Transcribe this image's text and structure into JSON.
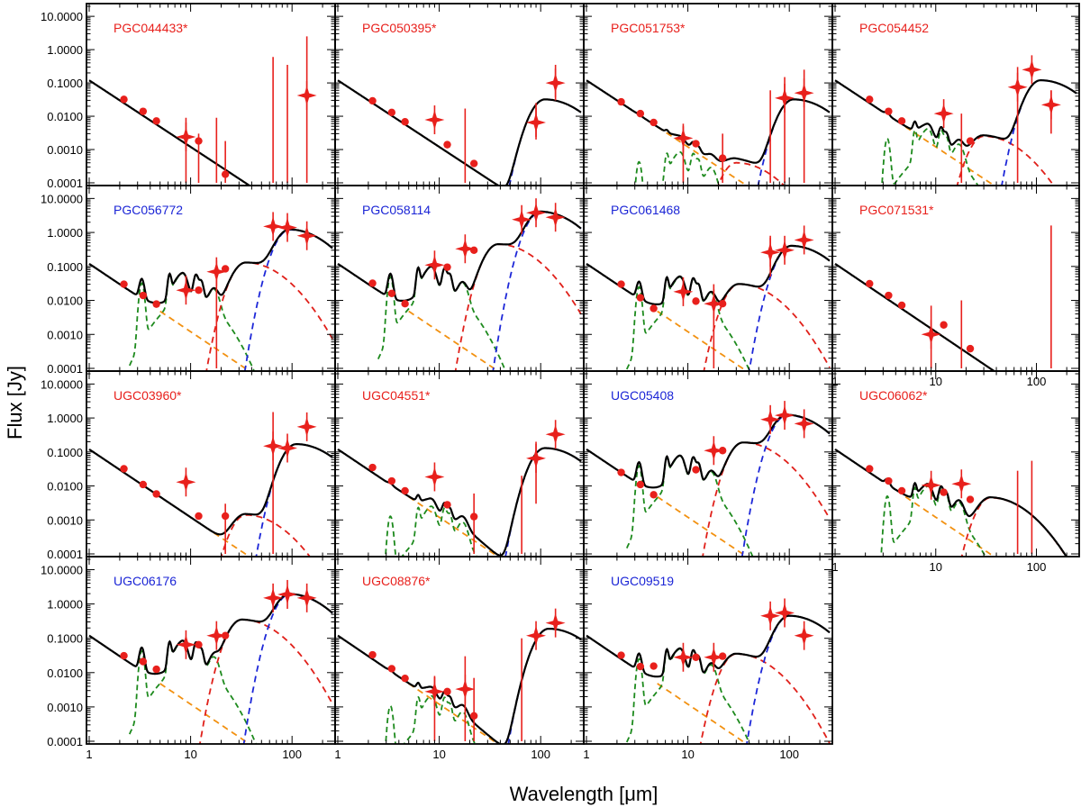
{
  "figure": {
    "xlabel": "Wavelength [μm]",
    "ylabel": "Flux [Jy]"
  },
  "colors": {
    "red_label": "#e8201c",
    "blue_label": "#1b25d6",
    "total": "#000000",
    "stellar": "#f29111",
    "pah": "#1d8a1d",
    "warm_dust": "#e0201a",
    "cold_dust": "#1d27d8",
    "points": "#e8201c"
  },
  "chart_data": {
    "type": "scatter",
    "grid": false,
    "x_axis": {
      "scale": "log",
      "range": [
        1,
        250
      ],
      "tick_labels": [
        "1",
        "10",
        "100"
      ]
    },
    "y_axis": {
      "scale": "log",
      "range": [
        0.0001,
        20
      ],
      "tick_labels": [
        "0.0001",
        "0.0010",
        "0.0100",
        "0.1000",
        "1.0000",
        "10.0000"
      ]
    },
    "components": [
      "total",
      "stellar",
      "pah",
      "warm_dust",
      "cold_dust"
    ],
    "panels": [
      {
        "label": "PGC044433*",
        "label_color": "red",
        "row": 0,
        "col": 0,
        "x_tick_labels": false,
        "stellar": 0.12,
        "pah": 0,
        "warm": null,
        "cold": null,
        "circles": [
          [
            2.2,
            0.032
          ],
          [
            3.4,
            0.014
          ],
          [
            4.6,
            0.0072
          ],
          [
            12,
            0.0018
          ],
          [
            22,
            0.00018
          ]
        ],
        "stars": [
          [
            9,
            0.0024
          ],
          [
            140,
            0.042
          ]
        ],
        "errorbars": [
          [
            9,
            0.0001,
            0.009
          ],
          [
            12,
            0.0001,
            0.003
          ],
          [
            18,
            0.0001,
            0.009
          ],
          [
            22,
            0.0001,
            0.0018
          ],
          [
            65,
            0.0001,
            0.6
          ],
          [
            90,
            0.0001,
            0.35
          ],
          [
            140,
            0.0001,
            2.5
          ]
        ]
      },
      {
        "label": "PGC050395*",
        "label_color": "red",
        "row": 0,
        "col": 1,
        "x_tick_labels": false,
        "stellar": 0.12,
        "pah": 0,
        "warm": null,
        "cold": [
          110,
          0.032
        ],
        "circles": [
          [
            2.2,
            0.029
          ],
          [
            3.4,
            0.013
          ],
          [
            4.6,
            0.0068
          ],
          [
            12,
            0.0014
          ],
          [
            22,
            0.00038
          ]
        ],
        "stars": [
          [
            9,
            0.0078
          ],
          [
            90,
            0.0065
          ],
          [
            140,
            0.1
          ]
        ],
        "errorbars": [
          [
            18,
            0.0001,
            0.017
          ],
          [
            90,
            0.002,
            0.025
          ],
          [
            140,
            0.03,
            0.35
          ]
        ]
      },
      {
        "label": "PGC051753*",
        "label_color": "red",
        "row": 0,
        "col": 2,
        "x_tick_labels": false,
        "stellar": 0.12,
        "pah": 0.0006,
        "warm": [
          30,
          0.0004
        ],
        "cold": [
          110,
          0.032
        ],
        "circles": [
          [
            2.2,
            0.027
          ],
          [
            3.4,
            0.012
          ],
          [
            4.6,
            0.0065
          ],
          [
            12,
            0.0015
          ],
          [
            22,
            0.00055
          ]
        ],
        "stars": [
          [
            9,
            0.0022
          ],
          [
            90,
            0.035
          ],
          [
            140,
            0.05
          ]
        ],
        "errorbars": [
          [
            9,
            0.0001,
            0.005
          ],
          [
            22,
            0.0001,
            0.003
          ],
          [
            65,
            0.0001,
            0.06
          ],
          [
            90,
            0.0001,
            0.15
          ],
          [
            140,
            0.0001,
            0.25
          ]
        ]
      },
      {
        "label": "PGC054452",
        "label_color": "red",
        "row": 0,
        "col": 3,
        "x_tick_labels": false,
        "stellar": 0.12,
        "pah": 0.003,
        "warm": [
          30,
          0.0025
        ],
        "cold": [
          110,
          0.12
        ],
        "circles": [
          [
            2.2,
            0.032
          ],
          [
            3.4,
            0.014
          ],
          [
            4.6,
            0.0072
          ],
          [
            22,
            0.0018
          ]
        ],
        "stars": [
          [
            12,
            0.012
          ],
          [
            65,
            0.075
          ],
          [
            90,
            0.25
          ],
          [
            140,
            0.022
          ]
        ],
        "errorbars": [
          [
            18,
            0.0001,
            0.012
          ],
          [
            65,
            0.0001,
            0.3
          ],
          [
            140,
            0.003,
            0.06
          ]
        ]
      },
      {
        "label": "PGC056772",
        "label_color": "blue",
        "row": 1,
        "col": 0,
        "x_tick_labels": false,
        "stellar": 0.12,
        "pah": 0.045,
        "warm": [
          35,
          0.13
        ],
        "cold": [
          95,
          1.2
        ],
        "circles": [
          [
            2.2,
            0.03
          ],
          [
            3.4,
            0.014
          ],
          [
            4.6,
            0.0078
          ],
          [
            12,
            0.02
          ],
          [
            22,
            0.085
          ]
        ],
        "stars": [
          [
            9,
            0.02
          ],
          [
            18,
            0.07
          ],
          [
            65,
            1.5
          ],
          [
            90,
            1.4
          ],
          [
            140,
            0.8
          ]
        ],
        "errorbars": [
          [
            18,
            0.0001,
            0.15
          ]
        ]
      },
      {
        "label": "PGC058114",
        "label_color": "blue",
        "row": 1,
        "col": 1,
        "x_tick_labels": false,
        "stellar": 0.12,
        "pah": 0.07,
        "warm": [
          38,
          0.45
        ],
        "cold": [
          100,
          4
        ],
        "circles": [
          [
            2.2,
            0.032
          ],
          [
            3.4,
            0.016
          ],
          [
            4.6,
            0.008
          ],
          [
            12,
            0.095
          ],
          [
            22,
            0.3
          ]
        ],
        "stars": [
          [
            9,
            0.11
          ],
          [
            18,
            0.33
          ],
          [
            65,
            2.4
          ],
          [
            90,
            3.8
          ],
          [
            140,
            2.8
          ]
        ],
        "errorbars": []
      },
      {
        "label": "PGC061468",
        "label_color": "blue",
        "row": 1,
        "col": 2,
        "x_tick_labels": false,
        "stellar": 0.12,
        "pah": 0.035,
        "warm": [
          32,
          0.03
        ],
        "cold": [
          105,
          0.4
        ],
        "circles": [
          [
            2.2,
            0.03
          ],
          [
            3.4,
            0.012
          ],
          [
            4.6,
            0.0058
          ],
          [
            12,
            0.0095
          ],
          [
            22,
            0.008
          ]
        ],
        "stars": [
          [
            9,
            0.018
          ],
          [
            18,
            0.008
          ],
          [
            65,
            0.26
          ],
          [
            90,
            0.3
          ],
          [
            140,
            0.6
          ]
        ],
        "errorbars": [
          [
            18,
            0.0001,
            0.03
          ],
          [
            65,
            0.05,
            0.8
          ]
        ]
      },
      {
        "label": "PGC071531*",
        "label_color": "red",
        "row": 1,
        "col": 3,
        "x_tick_labels": true,
        "stellar": 0.12,
        "pah": 0,
        "warm": null,
        "cold": null,
        "circles": [
          [
            2.2,
            0.031
          ],
          [
            3.4,
            0.014
          ],
          [
            4.6,
            0.0072
          ],
          [
            12,
            0.0019
          ],
          [
            22,
            0.00038
          ]
        ],
        "stars": [
          [
            9,
            0.001
          ]
        ],
        "errorbars": [
          [
            9,
            0.0001,
            0.007
          ],
          [
            18,
            0.0001,
            0.01
          ],
          [
            140,
            0.0001,
            1.6
          ]
        ]
      },
      {
        "label": "UGC03960*",
        "label_color": "red",
        "row": 2,
        "col": 0,
        "x_tick_labels": false,
        "stellar": 0.12,
        "pah": 0,
        "warm": [
          35,
          0.0014
        ],
        "cold": [
          110,
          0.17
        ],
        "circles": [
          [
            2.2,
            0.032
          ],
          [
            3.4,
            0.011
          ],
          [
            4.6,
            0.0058
          ],
          [
            12,
            0.0013
          ],
          [
            22,
            0.0013
          ]
        ],
        "stars": [
          [
            9,
            0.013
          ],
          [
            65,
            0.15
          ],
          [
            90,
            0.13
          ],
          [
            140,
            0.55
          ]
        ],
        "errorbars": [
          [
            22,
            0.0001,
            0.003
          ],
          [
            65,
            0.0001,
            1.5
          ]
        ]
      },
      {
        "label": "UGC04551*",
        "label_color": "red",
        "row": 2,
        "col": 1,
        "x_tick_labels": false,
        "stellar": 0.12,
        "pah": 0.0018,
        "warm": null,
        "cold": [
          110,
          0.13
        ],
        "circles": [
          [
            2.2,
            0.035
          ],
          [
            3.4,
            0.014
          ],
          [
            4.6,
            0.0072
          ],
          [
            12,
            0.0028
          ],
          [
            22,
            0.00125
          ]
        ],
        "stars": [
          [
            9,
            0.0185
          ],
          [
            90,
            0.065
          ],
          [
            140,
            0.33
          ]
        ],
        "errorbars": [
          [
            22,
            0.0001,
            0.006
          ],
          [
            65,
            0.0001,
            0.02
          ],
          [
            90,
            0.003,
            0.2
          ]
        ]
      },
      {
        "label": "UGC05408",
        "label_color": "blue",
        "row": 2,
        "col": 2,
        "x_tick_labels": false,
        "stellar": 0.12,
        "pah": 0.055,
        "warm": [
          35,
          0.19
        ],
        "cold": [
          95,
          1.2
        ],
        "circles": [
          [
            2.2,
            0.025
          ],
          [
            3.4,
            0.011
          ],
          [
            4.6,
            0.0055
          ],
          [
            12,
            0.03
          ],
          [
            22,
            0.11
          ]
        ],
        "stars": [
          [
            18,
            0.11
          ],
          [
            65,
            0.9
          ],
          [
            90,
            1.2
          ],
          [
            140,
            0.68
          ]
        ],
        "errorbars": []
      },
      {
        "label": "UGC06062*",
        "label_color": "red",
        "row": 2,
        "col": 3,
        "x_tick_labels": true,
        "stellar": 0.12,
        "pah": 0.007,
        "warm": [
          35,
          0.0045
        ],
        "cold": null,
        "circles": [
          [
            2.2,
            0.032
          ],
          [
            3.4,
            0.014
          ],
          [
            4.6,
            0.0072
          ],
          [
            12,
            0.0065
          ],
          [
            22,
            0.004
          ]
        ],
        "stars": [
          [
            9,
            0.0105
          ],
          [
            18,
            0.0115
          ]
        ],
        "errorbars": [
          [
            65,
            0.0001,
            0.028
          ],
          [
            90,
            0.0001,
            0.055
          ]
        ]
      },
      {
        "label": "UGC06176",
        "label_color": "blue",
        "row": 3,
        "col": 0,
        "x_tick_labels": true,
        "stellar": 0.12,
        "pah": 0.06,
        "warm": [
          32,
          0.35
        ],
        "cold": [
          95,
          1.9
        ],
        "circles": [
          [
            2.2,
            0.031
          ],
          [
            3.4,
            0.021
          ],
          [
            4.6,
            0.0125
          ],
          [
            12,
            0.065
          ],
          [
            22,
            0.12
          ]
        ],
        "stars": [
          [
            9,
            0.065
          ],
          [
            18,
            0.12
          ],
          [
            65,
            1.5
          ],
          [
            90,
            1.9
          ],
          [
            140,
            1.5
          ]
        ],
        "errorbars": []
      },
      {
        "label": "UGC08876*",
        "label_color": "red",
        "row": 3,
        "col": 1,
        "x_tick_labels": true,
        "stellar": 0.12,
        "pah": 0.0015,
        "warm": null,
        "cold": [
          120,
          0.19
        ],
        "circles": [
          [
            2.2,
            0.033
          ],
          [
            3.4,
            0.013
          ],
          [
            4.6,
            0.0068
          ],
          [
            12,
            0.0028
          ],
          [
            22,
            0.00055
          ]
        ],
        "stars": [
          [
            9,
            0.0028
          ],
          [
            18,
            0.0033
          ],
          [
            90,
            0.12
          ],
          [
            140,
            0.28
          ]
        ],
        "errorbars": [
          [
            9,
            0.0001,
            0.008
          ],
          [
            18,
            0.0001,
            0.03
          ],
          [
            22,
            0.0001,
            0.007
          ],
          [
            65,
            0.0001,
            0.1
          ]
        ]
      },
      {
        "label": "UGC09519",
        "label_color": "blue",
        "row": 3,
        "col": 2,
        "x_tick_labels": true,
        "stellar": 0.12,
        "pah": 0.035,
        "warm": [
          30,
          0.035
        ],
        "cold": [
          100,
          0.45
        ],
        "circles": [
          [
            2.2,
            0.032
          ],
          [
            3.4,
            0.015
          ],
          [
            4.6,
            0.0155
          ],
          [
            12,
            0.028
          ],
          [
            22,
            0.03
          ]
        ],
        "stars": [
          [
            9,
            0.028
          ],
          [
            18,
            0.028
          ],
          [
            65,
            0.45
          ],
          [
            90,
            0.55
          ],
          [
            140,
            0.12
          ]
        ],
        "errorbars": []
      }
    ]
  }
}
